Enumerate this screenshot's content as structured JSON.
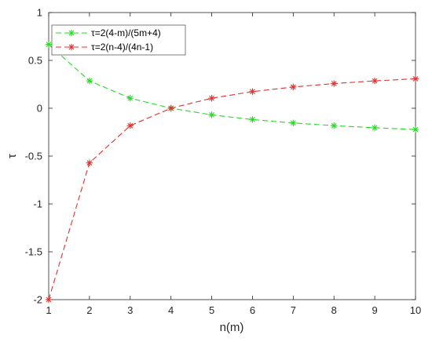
{
  "chart_data": {
    "type": "line",
    "xlabel": "n(m)",
    "ylabel": "τ",
    "xlim": [
      1,
      10
    ],
    "ylim": [
      -2,
      1
    ],
    "x": [
      1,
      2,
      3,
      4,
      5,
      6,
      7,
      8,
      9,
      10
    ],
    "xticks": [
      "1",
      "2",
      "3",
      "4",
      "5",
      "6",
      "7",
      "8",
      "9",
      "10"
    ],
    "yticks": [
      "-2",
      "-1.5",
      "-1",
      "-0.5",
      "0",
      "0.5",
      "1"
    ],
    "grid": false,
    "legend_position": "top-left",
    "series": [
      {
        "name": "τ=2(4-m)/(5m+4)",
        "color": "#22dd22",
        "line_style": "dashed",
        "marker": "asterisk",
        "values": [
          0.667,
          0.286,
          0.105,
          0.0,
          -0.069,
          -0.118,
          -0.154,
          -0.182,
          -0.204,
          -0.222
        ]
      },
      {
        "name": "τ=2(n-4)/(4n-1)",
        "color": "#e03030",
        "line_style": "dashed",
        "marker": "asterisk",
        "values": [
          -2.0,
          -0.571,
          -0.182,
          0.0,
          0.105,
          0.174,
          0.222,
          0.258,
          0.286,
          0.308
        ]
      }
    ]
  }
}
